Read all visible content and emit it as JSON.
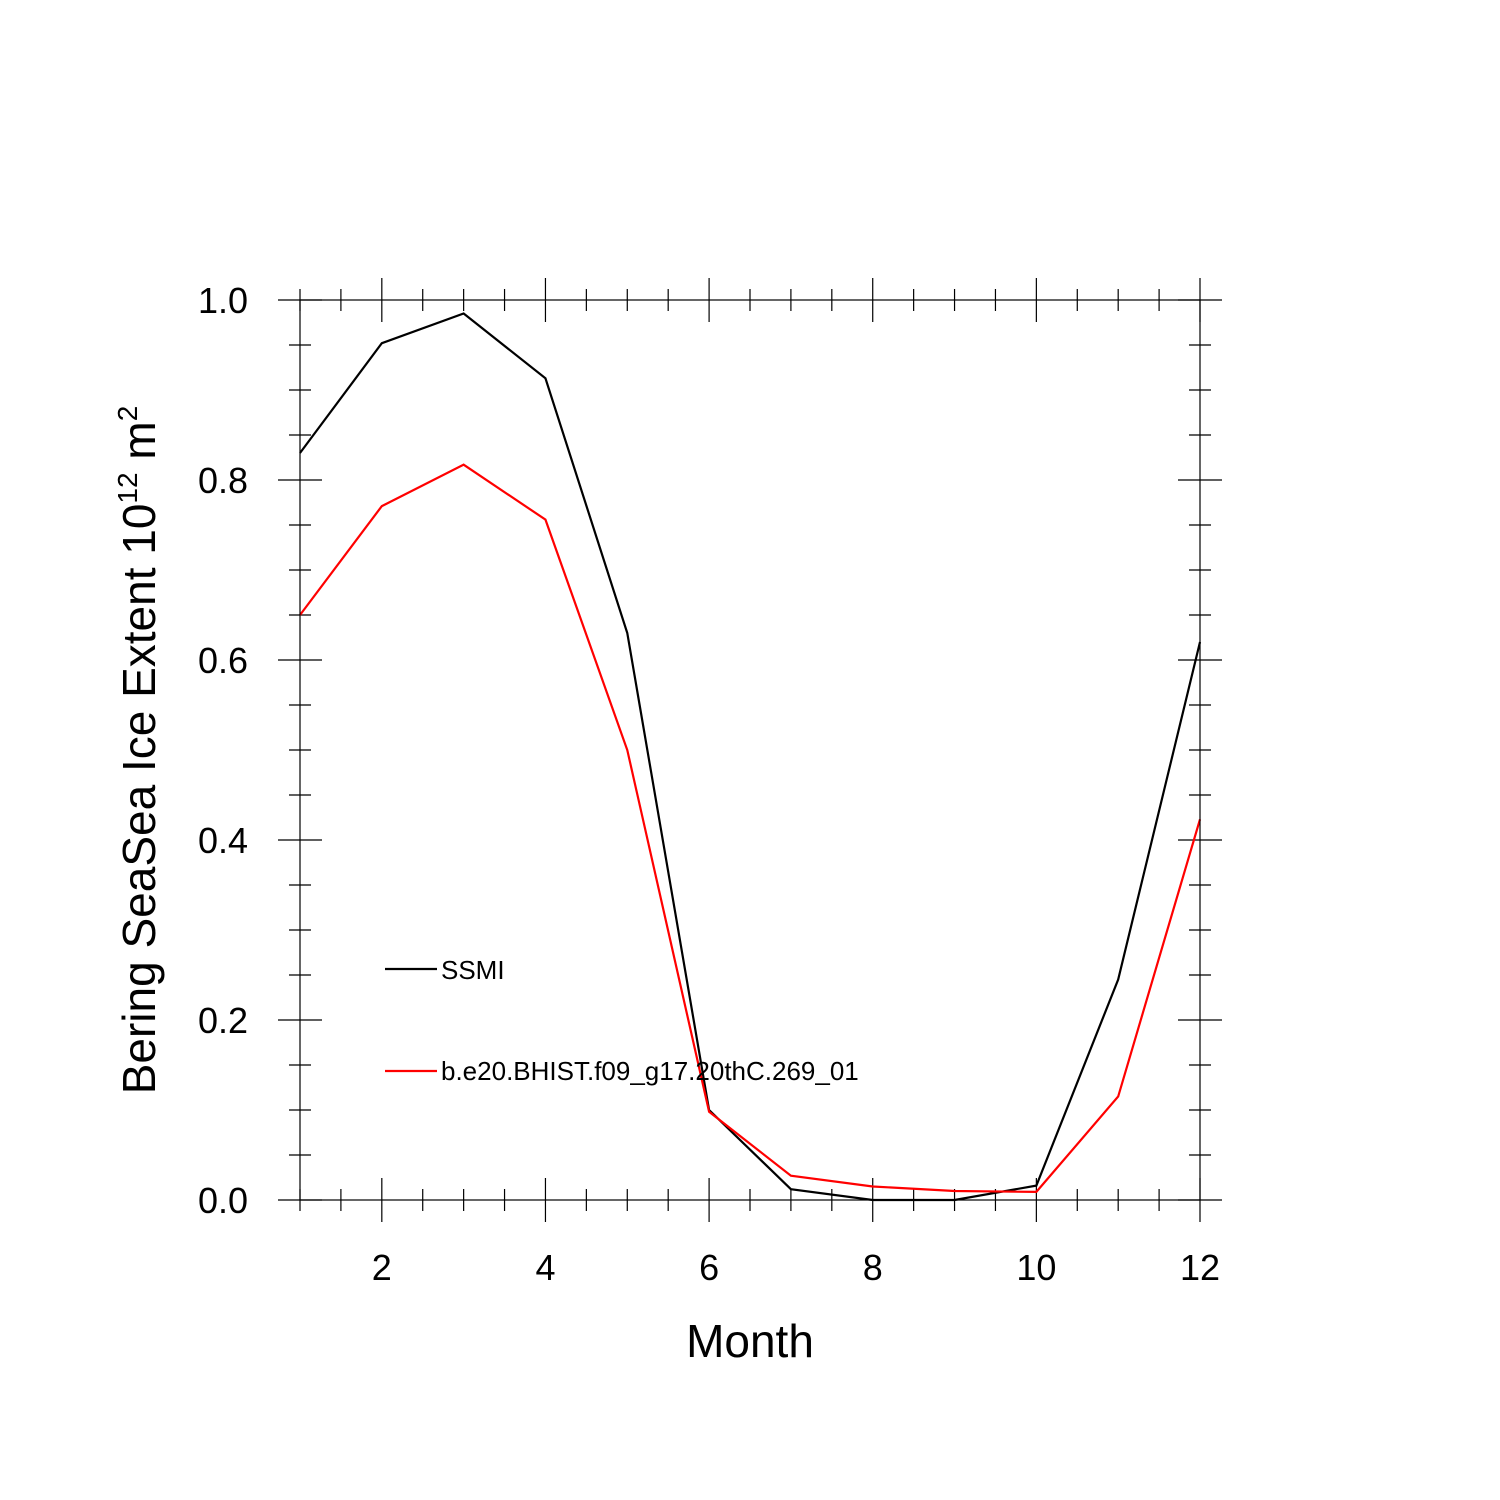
{
  "chart_data": {
    "type": "line",
    "xlabel": "Month",
    "ylabel": {
      "text": "Bering SeaSea Ice Extent 10",
      "exponent": "12",
      "unit": " m",
      "unit_exponent": "2"
    },
    "xlim": [
      1,
      12
    ],
    "ylim": [
      0,
      1
    ],
    "x_major_ticks": [
      2,
      4,
      6,
      8,
      10,
      12
    ],
    "x_minor_step": 0.5,
    "y_major_ticks": [
      0.0,
      0.2,
      0.4,
      0.6,
      0.8,
      1.0
    ],
    "y_tick_labels": [
      "0.0",
      "0.2",
      "0.4",
      "0.6",
      "0.8",
      "1.0"
    ],
    "y_minor_step": 0.05,
    "grid": false,
    "legend_position": "inside-lower-left",
    "x": [
      1,
      2,
      3,
      4,
      5,
      6,
      7,
      8,
      9,
      10,
      11,
      12
    ],
    "series": [
      {
        "name": "SSMI",
        "color": "#000000",
        "values": [
          0.83,
          0.952,
          0.985,
          0.913,
          0.63,
          0.1,
          0.012,
          0.0,
          0.0,
          0.016,
          0.245,
          0.62
        ]
      },
      {
        "name": "b.e20.BHIST.f09_g17.20thC.269_01",
        "color": "#ff0000",
        "values": [
          0.65,
          0.771,
          0.817,
          0.756,
          0.5,
          0.098,
          0.027,
          0.015,
          0.01,
          0.009,
          0.115,
          0.423
        ]
      }
    ]
  }
}
